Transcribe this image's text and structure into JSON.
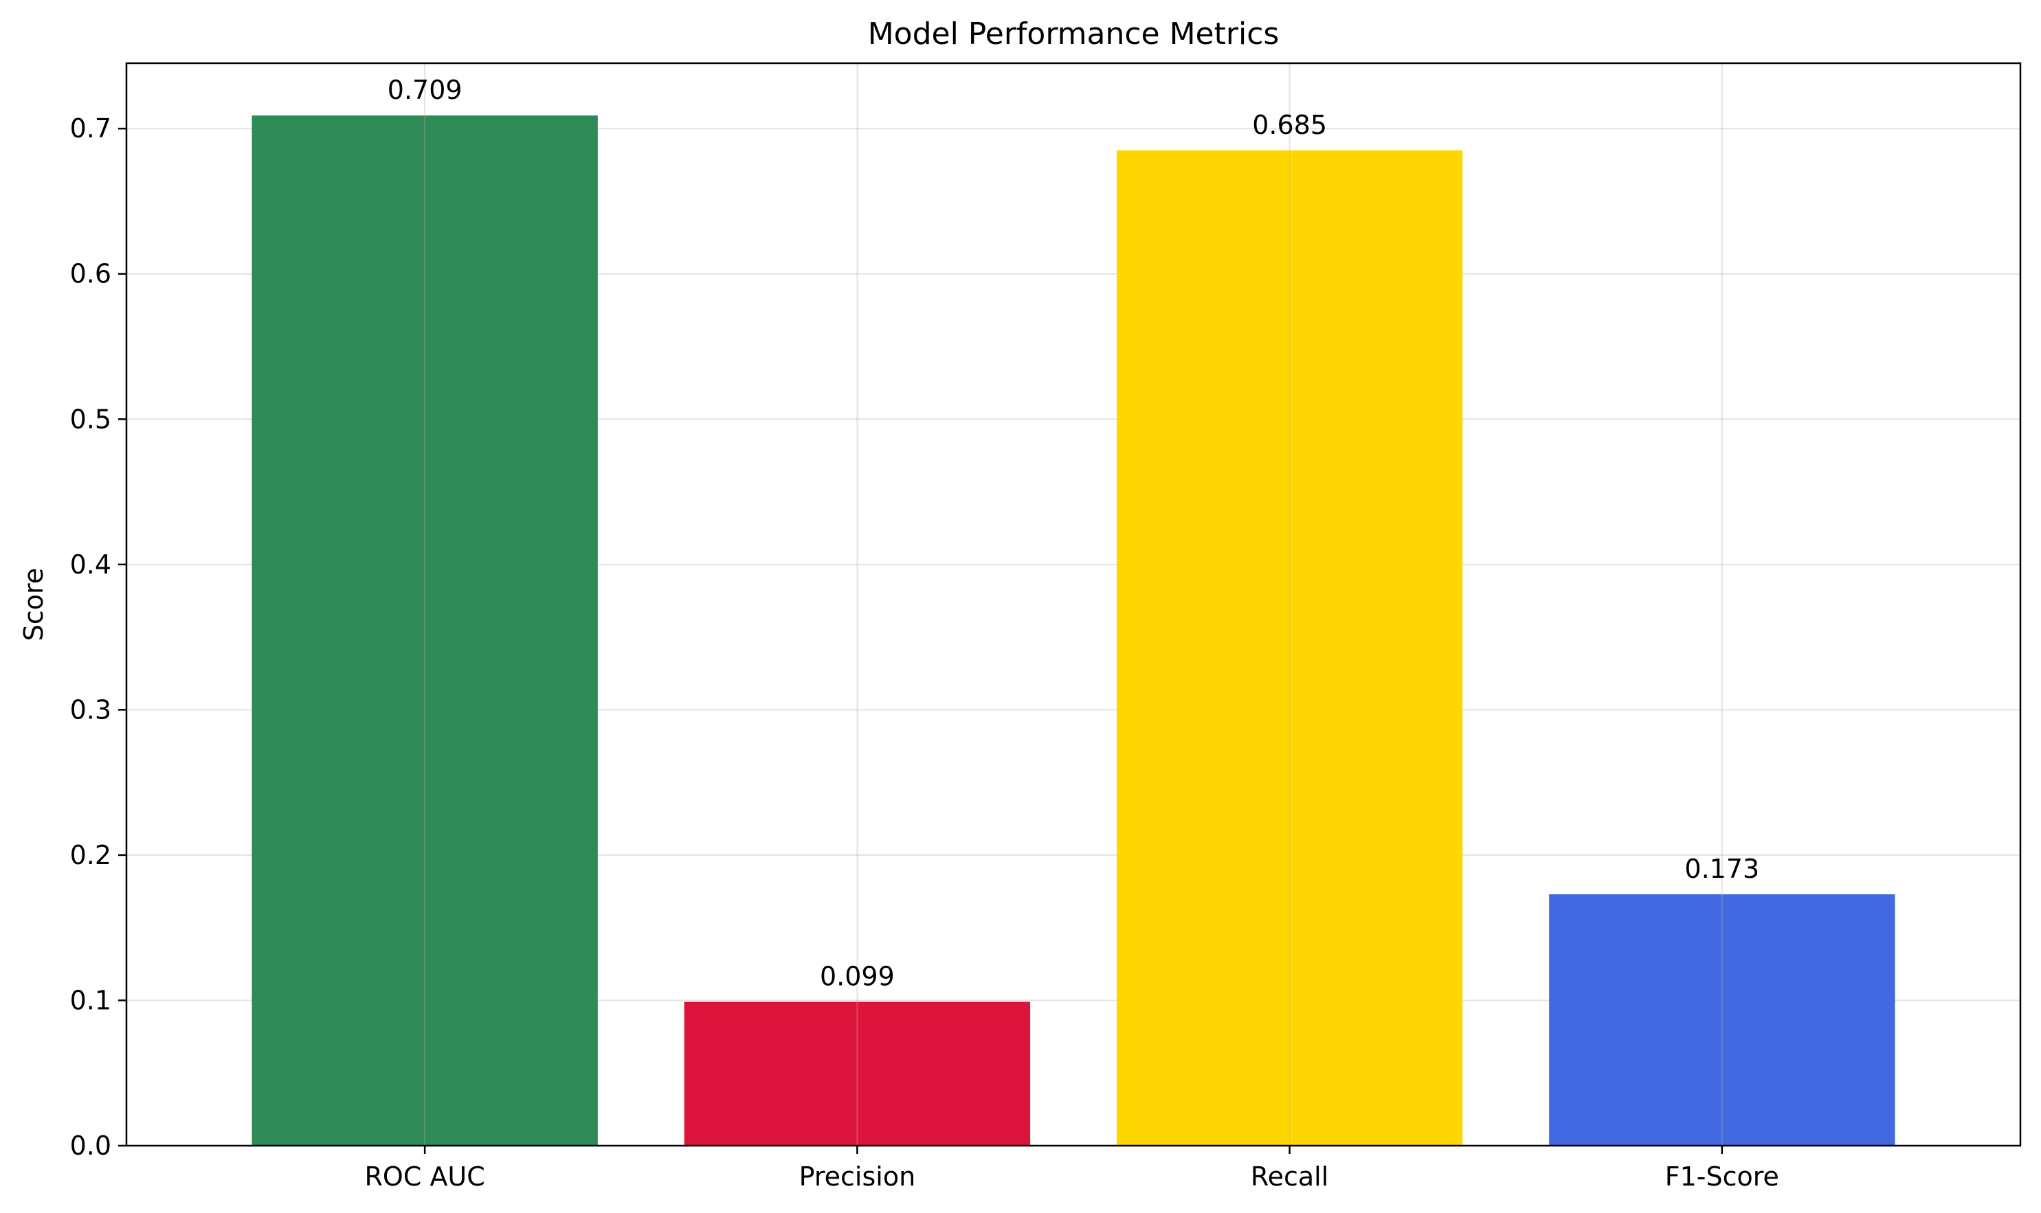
{
  "chart_data": {
    "type": "bar",
    "title": "Model Performance Metrics",
    "xlabel": "",
    "ylabel": "Score",
    "categories": [
      "ROC AUC",
      "Precision",
      "Recall",
      "F1-Score"
    ],
    "values": [
      0.709,
      0.099,
      0.685,
      0.173
    ],
    "value_labels": [
      "0.709",
      "0.099",
      "0.685",
      "0.173"
    ],
    "colors": [
      "#2e8b57",
      "#dc143c",
      "#ffd700",
      "#4169e1"
    ],
    "ylim": [
      0,
      0.745
    ],
    "yticks": [
      0.0,
      0.1,
      0.2,
      0.3,
      0.4,
      0.5,
      0.6,
      0.7
    ],
    "ytick_labels": [
      "0.0",
      "0.1",
      "0.2",
      "0.3",
      "0.4",
      "0.5",
      "0.6",
      "0.7"
    ],
    "grid": true,
    "legend": "none"
  }
}
